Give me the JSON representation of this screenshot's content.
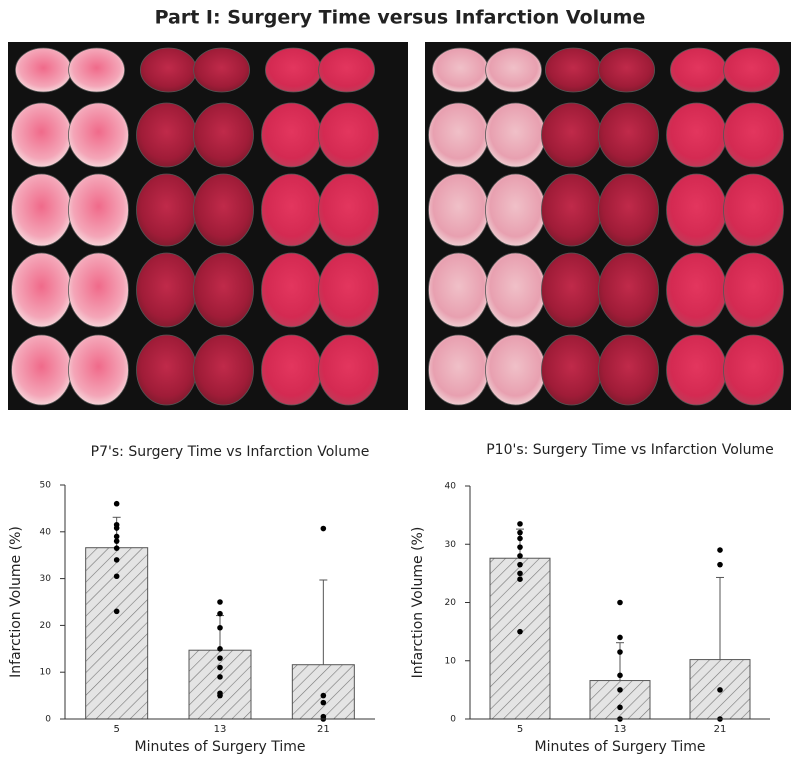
{
  "title": "Part I: Surgery Time versus Infarction Volume",
  "chart_data": [
    {
      "type": "bar",
      "title": "P7's: Surgery Time vs Infarction Volume",
      "x_label": "Minutes of Surgery Time",
      "y_label": "Infarction Volume (%)",
      "categories": [
        "5",
        "13",
        "21"
      ],
      "values": [
        36.6,
        14.7,
        11.6
      ],
      "errors": [
        6.5,
        7.4,
        18.1
      ],
      "points": [
        [
          46,
          41.5,
          40.8,
          39,
          38,
          36.5,
          34,
          30.5,
          23
        ],
        [
          25,
          22.5,
          19.5,
          15,
          13,
          11,
          9,
          5.5,
          5
        ],
        [
          40.7,
          5,
          3.5,
          0.5,
          0
        ]
      ],
      "ylim": [
        0,
        50
      ],
      "yticks": [
        0,
        10,
        20,
        30,
        40,
        50
      ],
      "color": "#d9d9d9",
      "grid": false
    },
    {
      "type": "bar",
      "title": "P10's: Surgery Time vs Infarction Volume",
      "x_label": "Minutes of Surgery Time",
      "y_label": "Infarction Volume (%)",
      "categories": [
        "5",
        "13",
        "21"
      ],
      "values": [
        27.6,
        6.6,
        10.2
      ],
      "errors": [
        5,
        6.5,
        14.1
      ],
      "points": [
        [
          33.5,
          32,
          31,
          29.5,
          28,
          26.5,
          25,
          24,
          15
        ],
        [
          20,
          14,
          11.5,
          7.5,
          5,
          2,
          0
        ],
        [
          29,
          26.5,
          5,
          0
        ]
      ],
      "ylim": [
        0,
        40
      ],
      "yticks": [
        0,
        10,
        20,
        30,
        40
      ],
      "color": "#d9d9d9",
      "grid": false
    }
  ]
}
